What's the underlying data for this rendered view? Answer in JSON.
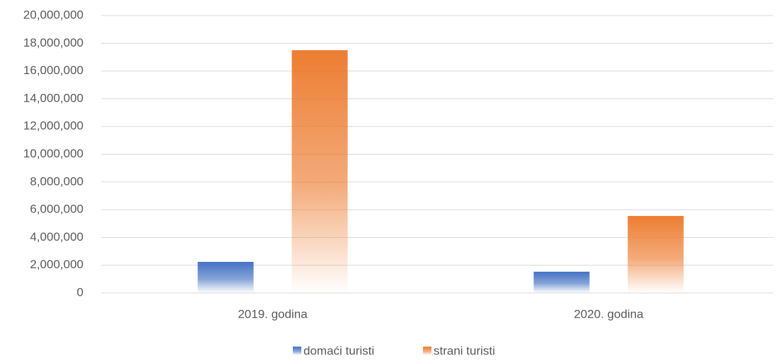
{
  "chart_data": {
    "type": "bar",
    "categories": [
      "2019. godina",
      "2020. godina"
    ],
    "series": [
      {
        "name": "domaći turisti",
        "color": "#4472c4",
        "values": [
          2240000,
          1530000
        ]
      },
      {
        "name": "strani turisti",
        "color": "#ed7d31",
        "values": [
          17500000,
          5550000
        ]
      }
    ],
    "ylim": [
      0,
      20000000
    ],
    "yticks": [
      0,
      {
        "value": 2000000,
        "label": "2,000,000"
      },
      {
        "value": 4000000,
        "label": "4,000,000"
      },
      {
        "value": 6000000,
        "label": "6,000,000"
      },
      {
        "value": 8000000,
        "label": "8,000,000"
      },
      {
        "value": 10000000,
        "label": "10,000,000"
      },
      {
        "value": 12000000,
        "label": "12,000,000"
      },
      {
        "value": 14000000,
        "label": "14,000,000"
      },
      {
        "value": 16000000,
        "label": "16,000,000"
      },
      {
        "value": 18000000,
        "label": "18,000,000"
      },
      {
        "value": 20000000,
        "label": "20,000,000"
      }
    ],
    "grid": true,
    "legend": "bottom"
  }
}
